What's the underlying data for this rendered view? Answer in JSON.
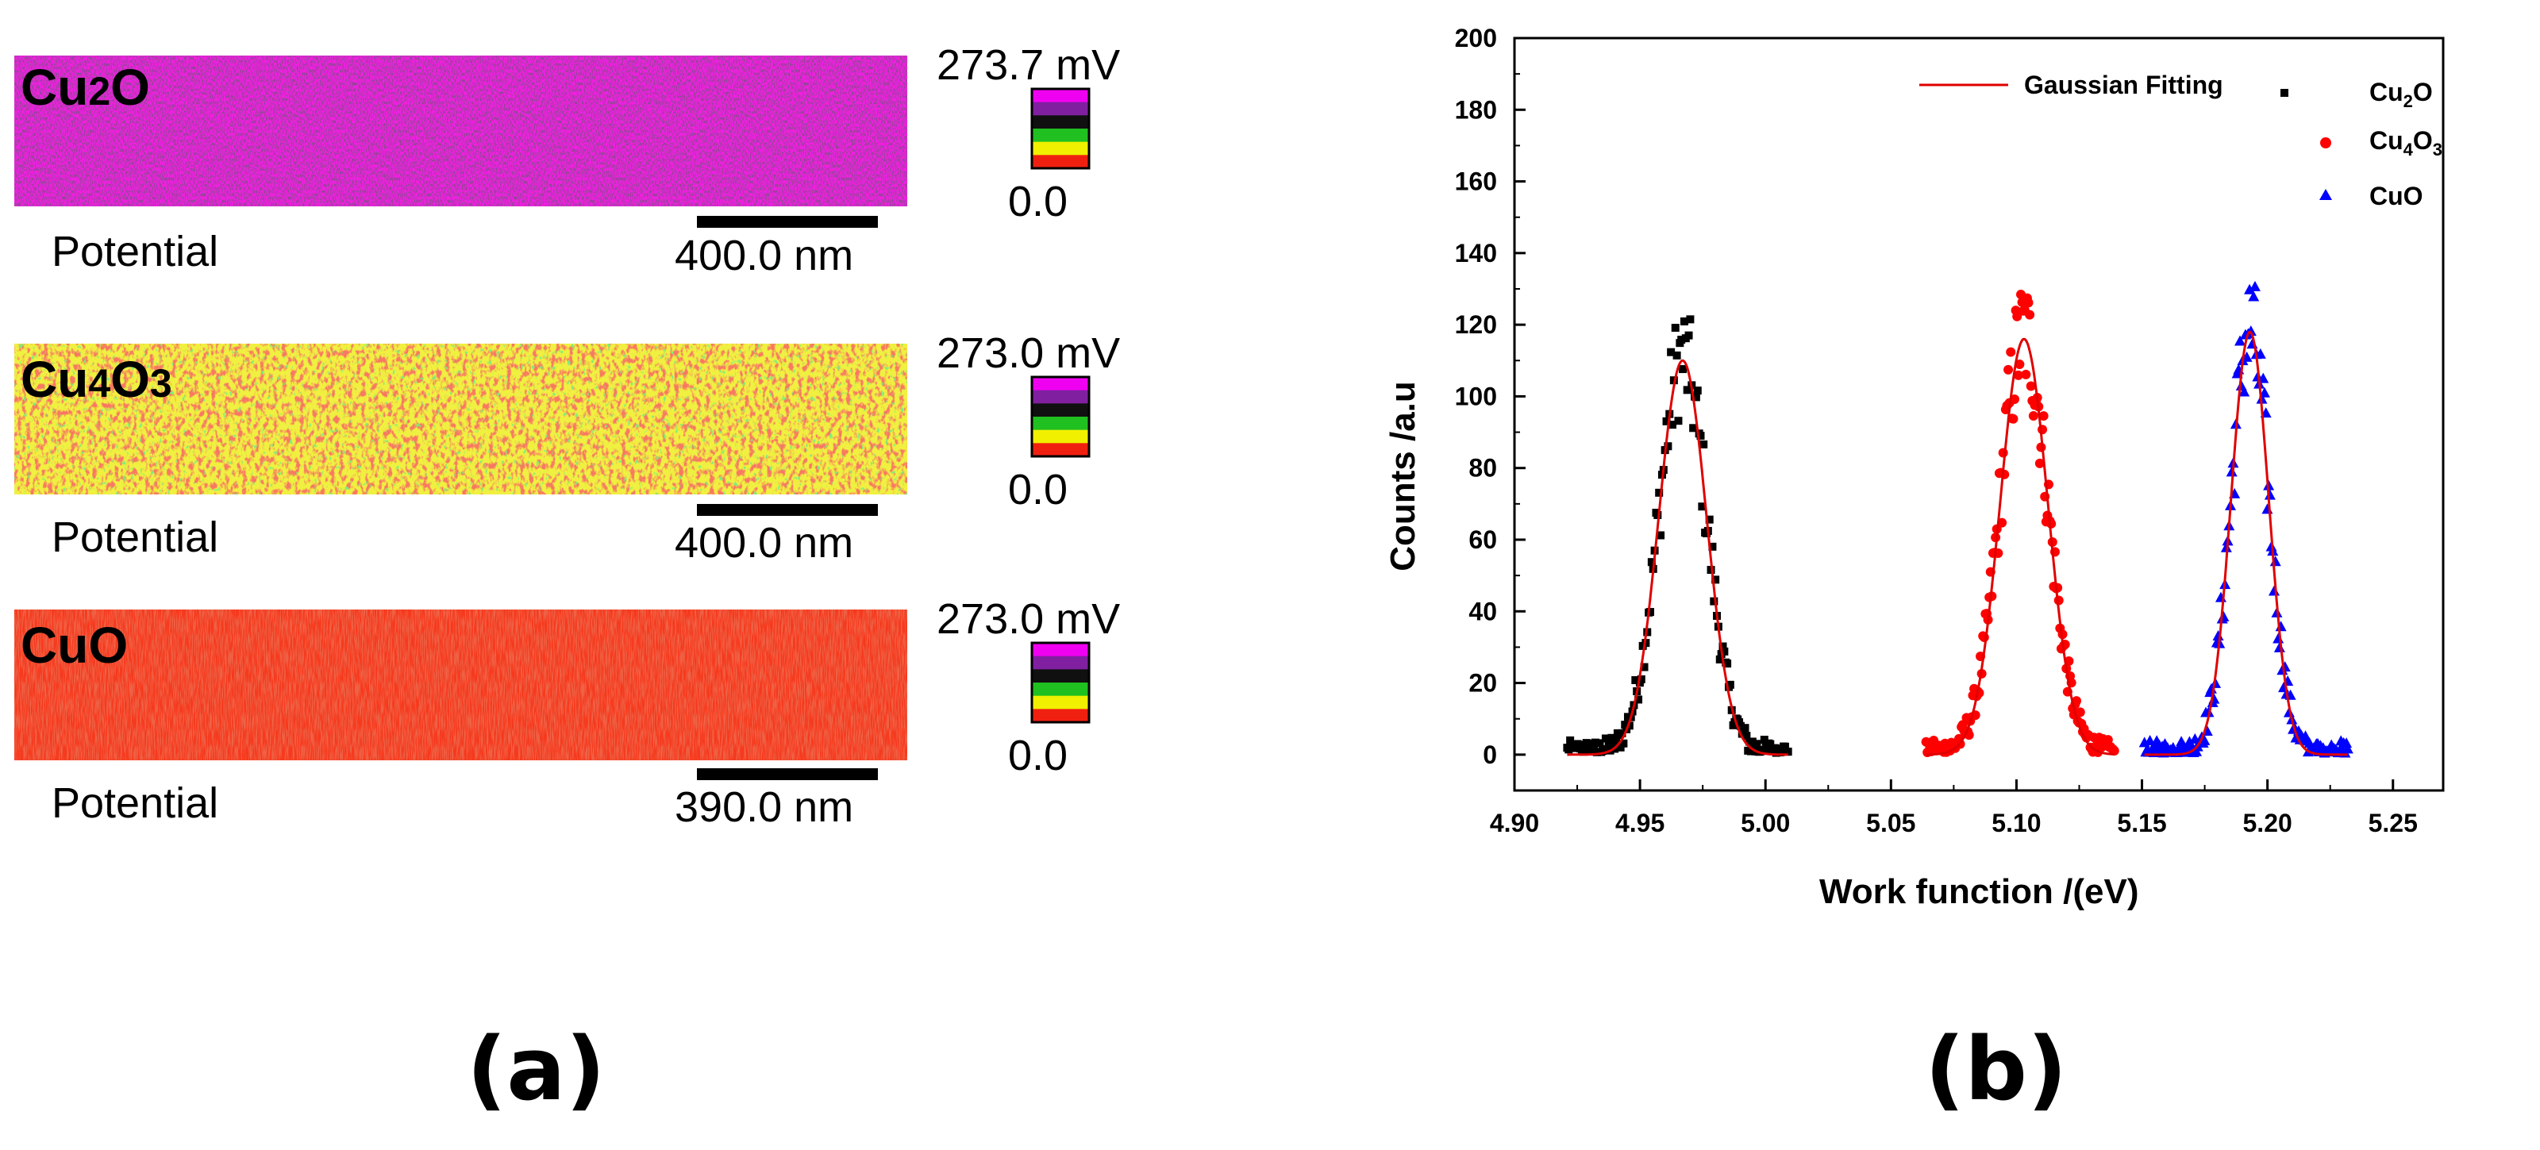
{
  "panel_a": {
    "maps": [
      {
        "label_main": "Cu",
        "label_parts": [
          "Cu",
          "2",
          "O"
        ],
        "scale_top": "273.7 mV",
        "scale_bottom": "0.0",
        "channel": "Potential",
        "scalebar": "400.0 nm",
        "colors": {
          "base": "#f020e0",
          "spot": "#4a1050"
        }
      },
      {
        "label_parts": [
          "Cu",
          "4",
          "O",
          "3"
        ],
        "scale_top": "273.0 mV",
        "scale_bottom": "0.0",
        "channel": "Potential",
        "scalebar": "400.0 nm",
        "colors": {
          "base": "#f0f040",
          "spot": "#f03020"
        }
      },
      {
        "label_parts": [
          "CuO"
        ],
        "scale_top": "273.0 mV",
        "scale_bottom": "0.0",
        "channel": "Potential",
        "scalebar": "390.0 nm",
        "colors": {
          "base": "#f63a1e",
          "spot": "#e82a14"
        }
      }
    ],
    "colorbar": [
      "#f000f0",
      "#8020a0",
      "#101010",
      "#20c020",
      "#f0f000",
      "#f02010"
    ],
    "panel_label": "(a)"
  },
  "chart_data": {
    "type": "scatter",
    "title": "",
    "xlabel": "Work function /(eV)",
    "ylabel": "Counts /a.u",
    "xlim": [
      4.9,
      5.27
    ],
    "ylim": [
      -10,
      200
    ],
    "xticks": [
      "4.90",
      "4.95",
      "5.00",
      "5.05",
      "5.10",
      "5.15",
      "5.20",
      "5.25"
    ],
    "yticks": [
      "0",
      "20",
      "40",
      "60",
      "80",
      "100",
      "120",
      "140",
      "160",
      "180",
      "200"
    ],
    "legend": {
      "placement": "top-right",
      "fit_label": "Gaussian Fitting"
    },
    "fit_color": "#e00000",
    "series": [
      {
        "name": "Cu2O",
        "label_parts": [
          "Cu",
          "2",
          "O",
          ""
        ],
        "marker": "square",
        "color": "#000000",
        "center": 4.967,
        "sigma": 0.0095,
        "amplitude": 110,
        "xmin": 4.921,
        "xmax": 5.009,
        "n": 150
      },
      {
        "name": "Cu4O3",
        "label_parts": [
          "Cu",
          "4",
          "O",
          "3"
        ],
        "marker": "circle",
        "color": "#ff0000",
        "center": 5.103,
        "sigma": 0.0095,
        "amplitude": 116,
        "xmin": 5.064,
        "xmax": 5.139,
        "n": 150
      },
      {
        "name": "CuO",
        "label_parts": [
          "CuO",
          "",
          "",
          ""
        ],
        "marker": "triangle",
        "color": "#0000ff",
        "center": 5.193,
        "sigma": 0.0075,
        "amplitude": 118,
        "xmin": 5.151,
        "xmax": 5.232,
        "n": 150
      }
    ]
  },
  "panel_b_label": "(b)"
}
